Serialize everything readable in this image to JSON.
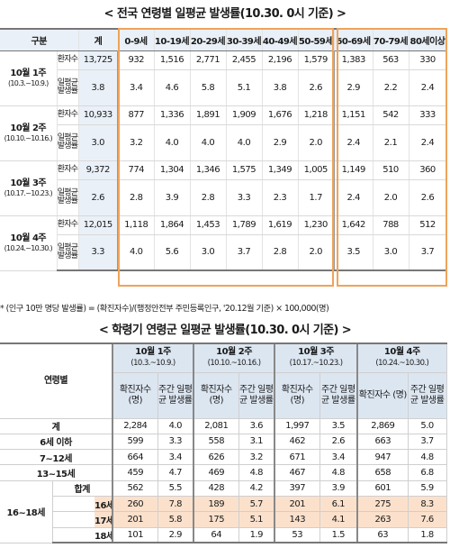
{
  "table1": {
    "title": "< 전국 연령별 일평균 발생률(10.30. 0시 기준) >",
    "headers": [
      "구분",
      "계",
      "0-9세",
      "10-19세",
      "20-29세",
      "30-39세",
      "40-49세",
      "50-59세",
      "60-69세",
      "70-79세",
      "80세이상"
    ],
    "row_labels": {
      "cases": "환자수",
      "rate": "일평균 발생률"
    },
    "weeks": [
      {
        "week": "10월 1주",
        "period": "(10.3.~10.9.)",
        "cases": [
          "13,725",
          "932",
          "1,516",
          "2,771",
          "2,455",
          "2,196",
          "1,579",
          "1,383",
          "563",
          "330"
        ],
        "rate": [
          "3.8",
          "3.4",
          "4.6",
          "5.8",
          "5.1",
          "3.8",
          "2.6",
          "2.9",
          "2.2",
          "2.4"
        ]
      },
      {
        "week": "10월 2주",
        "period": "(10.10.~10.16.)",
        "cases": [
          "10,933",
          "877",
          "1,336",
          "1,891",
          "1,909",
          "1,676",
          "1,218",
          "1,151",
          "542",
          "333"
        ],
        "rate": [
          "3.0",
          "3.2",
          "4.0",
          "4.0",
          "4.0",
          "2.9",
          "2.0",
          "2.4",
          "2.1",
          "2.4"
        ]
      },
      {
        "week": "10월 3주",
        "period": "(10.17.~10.23.)",
        "cases": [
          "9,372",
          "774",
          "1,304",
          "1,346",
          "1,575",
          "1,349",
          "1,005",
          "1,149",
          "510",
          "360"
        ],
        "rate": [
          "2.6",
          "2.8",
          "3.9",
          "2.8",
          "3.3",
          "2.3",
          "1.7",
          "2.4",
          "2.0",
          "2.6"
        ]
      },
      {
        "week": "10월 4주",
        "period": "(10.24.~10.30.)",
        "cases": [
          "12,015",
          "1,118",
          "1,864",
          "1,453",
          "1,789",
          "1,619",
          "1,230",
          "1,642",
          "788",
          "512"
        ],
        "rate": [
          "3.3",
          "4.0",
          "5.6",
          "3.0",
          "3.7",
          "2.8",
          "2.0",
          "3.5",
          "3.0",
          "3.7"
        ]
      }
    ],
    "footnote": "* (인구 10만 명당 발생률) = (확진자수)/(행정안전부 주민등록인구, '20.12월 기준) × 100,000(명)"
  },
  "table2": {
    "title": "< 학령기 연령군 일평균 발생률(10.30. 0시 기준) >",
    "age_header": "연령별",
    "weeks": [
      {
        "week": "10월 1주",
        "period": "(10.3.~10.9.)"
      },
      {
        "week": "10월 2주",
        "period": "(10.10.~10.16.)"
      },
      {
        "week": "10월 3주",
        "period": "(10.17.~10.23.)"
      },
      {
        "week": "10월 4주",
        "period": "(10.24.~10.30.)"
      }
    ],
    "sub_cases": "확진자수 (명)",
    "sub_rate": "주간 일평균 발생률",
    "group_label": "16~18세",
    "rows": [
      {
        "label": "계",
        "values": [
          "2,284",
          "4.0",
          "2,081",
          "3.6",
          "1,997",
          "3.5",
          "2,869",
          "5.0"
        ]
      },
      {
        "label": "6세 이하",
        "values": [
          "599",
          "3.3",
          "558",
          "3.1",
          "462",
          "2.6",
          "663",
          "3.7"
        ]
      },
      {
        "label": "7~12세",
        "values": [
          "664",
          "3.4",
          "626",
          "3.2",
          "671",
          "3.4",
          "947",
          "4.8"
        ]
      },
      {
        "label": "13~15세",
        "values": [
          "459",
          "4.7",
          "469",
          "4.8",
          "467",
          "4.8",
          "658",
          "6.8"
        ]
      },
      {
        "label": "합계",
        "values": [
          "562",
          "5.5",
          "428",
          "4.2",
          "397",
          "3.9",
          "601",
          "5.9"
        ]
      },
      {
        "label": "16세",
        "values": [
          "260",
          "7.8",
          "189",
          "5.7",
          "201",
          "6.1",
          "275",
          "8.3"
        ]
      },
      {
        "label": "17세",
        "values": [
          "201",
          "5.8",
          "175",
          "5.1",
          "143",
          "4.1",
          "263",
          "7.6"
        ]
      },
      {
        "label": "18세",
        "values": [
          "101",
          "2.9",
          "64",
          "1.9",
          "53",
          "1.5",
          "63",
          "1.8"
        ]
      }
    ]
  }
}
